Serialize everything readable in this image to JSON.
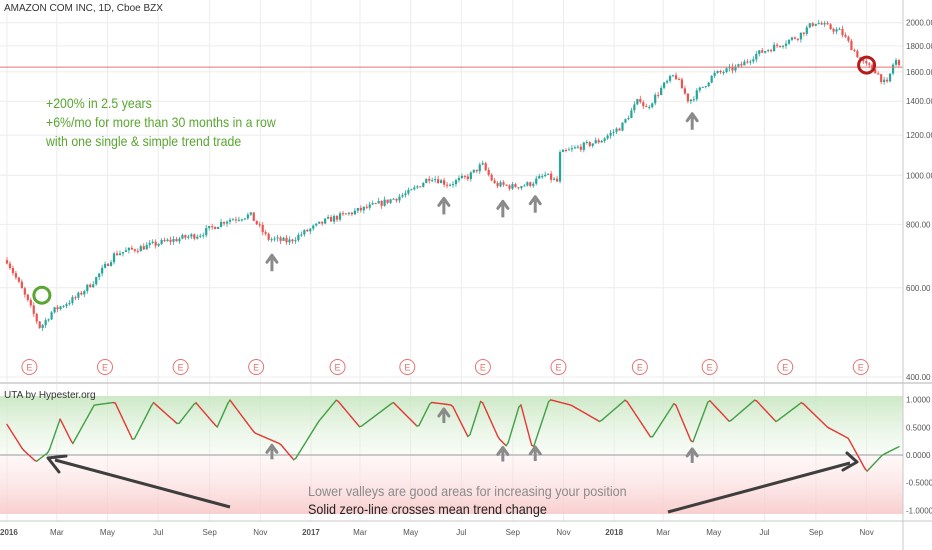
{
  "header": {
    "symbol_title": "AMAZON COM INC, 1D, Cboe BZX",
    "indicator_title": "UTA by Hypester.org"
  },
  "annotations": {
    "line1": "+200% in 2.5 years",
    "line2": "+6%/mo for more than 30 months in a row",
    "line3": "with one single & simple trend trade",
    "note_valleys": "Lower valleys are good areas for increasing your position",
    "note_zero": "Solid zero-line crosses mean trend change",
    "earnings_marker": "E"
  },
  "colors": {
    "up_candle": "#26a69a",
    "down_candle": "#ef5350",
    "annotation_green": "#5aa632",
    "horizontal_line": "#e57373",
    "indicator_up": "#43a047",
    "indicator_down": "#e53935",
    "arrow_gray": "#8a8a8a",
    "big_arrow": "#3e3e3e"
  },
  "chart_data": [
    {
      "type": "candlestick",
      "title": "AMAZON COM INC, 1D, Cboe BZX",
      "ylim": [
        400,
        2100
      ],
      "y_ticks": [
        "400.00",
        "600.00",
        "800.00",
        "1000.00",
        "1200.00",
        "1400.00",
        "1600.00",
        "1800.00",
        "2000.00"
      ],
      "x_ticks": [
        "2016",
        "Mar",
        "May",
        "Jul",
        "Sep",
        "Nov",
        "2017",
        "Mar",
        "May",
        "Jul",
        "Sep",
        "Nov",
        "2018",
        "Mar",
        "May",
        "Jul",
        "Sep",
        "Nov"
      ],
      "horizontal_line": 1635,
      "price_path": [
        [
          "2016-01-01",
          680
        ],
        [
          "2016-01-20",
          590
        ],
        [
          "2016-02-10",
          500
        ],
        [
          "2016-02-25",
          540
        ],
        [
          "2016-03-25",
          575
        ],
        [
          "2016-04-15",
          620
        ],
        [
          "2016-05-10",
          700
        ],
        [
          "2016-06-10",
          720
        ],
        [
          "2016-07-10",
          740
        ],
        [
          "2016-08-20",
          765
        ],
        [
          "2016-09-20",
          815
        ],
        [
          "2016-10-20",
          835
        ],
        [
          "2016-11-10",
          750
        ],
        [
          "2016-12-05",
          740
        ],
        [
          "2016-12-20",
          765
        ],
        [
          "2017-01-20",
          815
        ],
        [
          "2017-02-20",
          845
        ],
        [
          "2017-03-30",
          885
        ],
        [
          "2017-04-30",
          925
        ],
        [
          "2017-05-25",
          995
        ],
        [
          "2017-06-15",
          960
        ],
        [
          "2017-07-10",
          995
        ],
        [
          "2017-07-26",
          1050
        ],
        [
          "2017-08-10",
          960
        ],
        [
          "2017-09-01",
          950
        ],
        [
          "2017-09-20",
          960
        ],
        [
          "2017-10-10",
          1000
        ],
        [
          "2017-10-25",
          970
        ],
        [
          "2017-10-27",
          1100
        ],
        [
          "2017-11-15",
          1130
        ],
        [
          "2017-12-15",
          1170
        ],
        [
          "2018-01-10",
          1250
        ],
        [
          "2018-02-01",
          1420
        ],
        [
          "2018-02-08",
          1350
        ],
        [
          "2018-03-01",
          1500
        ],
        [
          "2018-03-15",
          1580
        ],
        [
          "2018-04-01",
          1400
        ],
        [
          "2018-04-15",
          1480
        ],
        [
          "2018-05-01",
          1580
        ],
        [
          "2018-06-01",
          1640
        ],
        [
          "2018-06-20",
          1730
        ],
        [
          "2018-07-15",
          1800
        ],
        [
          "2018-08-10",
          1880
        ],
        [
          "2018-08-31",
          2010
        ],
        [
          "2018-09-15",
          1960
        ],
        [
          "2018-10-01",
          1920
        ],
        [
          "2018-10-15",
          1780
        ],
        [
          "2018-10-30",
          1650
        ],
        [
          "2018-11-10",
          1620
        ],
        [
          "2018-11-25",
          1500
        ],
        [
          "2018-12-05",
          1700
        ],
        [
          "2018-12-10",
          1640
        ]
      ],
      "earnings_dates": [
        "2016-01-28",
        "2016-04-28",
        "2016-07-28",
        "2016-10-27",
        "2017-02-02",
        "2017-04-27",
        "2017-07-27",
        "2017-10-26",
        "2018-02-01",
        "2018-04-26",
        "2018-07-26",
        "2018-10-25"
      ],
      "arrow_dates": [
        "2016-11-15",
        "2017-06-10",
        "2017-08-20",
        "2017-09-28",
        "2018-04-05"
      ],
      "circles": [
        [
          "2016-02-12",
          580
        ],
        [
          "2018-11-01",
          1650
        ]
      ]
    },
    {
      "type": "line",
      "title": "UTA by Hypester.org",
      "ylim": [
        -1.1,
        1.1
      ],
      "y_ticks": [
        "1.0000",
        "0.5000",
        "0.0000",
        "-0.5000",
        "-1.0000"
      ],
      "x_ticks": [
        "2016",
        "Mar",
        "May",
        "Jul",
        "Sep",
        "Nov",
        "2017",
        "Mar",
        "May",
        "Jul",
        "Sep",
        "Nov",
        "2018",
        "Mar",
        "May",
        "Jul",
        "Sep",
        "Nov"
      ],
      "zero_line": 0,
      "oscillator": [
        [
          "2016-01-01",
          0.55
        ],
        [
          "2016-01-20",
          0.1
        ],
        [
          "2016-02-05",
          -0.12
        ],
        [
          "2016-02-20",
          0.05
        ],
        [
          "2016-03-05",
          0.65
        ],
        [
          "2016-03-20",
          0.2
        ],
        [
          "2016-04-15",
          0.9
        ],
        [
          "2016-05-10",
          0.95
        ],
        [
          "2016-06-01",
          0.25
        ],
        [
          "2016-06-25",
          0.95
        ],
        [
          "2016-07-25",
          0.55
        ],
        [
          "2016-08-15",
          0.95
        ],
        [
          "2016-09-10",
          0.5
        ],
        [
          "2016-09-25",
          1.0
        ],
        [
          "2016-10-25",
          0.4
        ],
        [
          "2016-11-25",
          0.2
        ],
        [
          "2016-12-12",
          -0.1
        ],
        [
          "2017-01-10",
          0.6
        ],
        [
          "2017-02-01",
          1.0
        ],
        [
          "2017-03-01",
          0.5
        ],
        [
          "2017-04-10",
          0.95
        ],
        [
          "2017-05-10",
          0.5
        ],
        [
          "2017-05-25",
          0.95
        ],
        [
          "2017-06-20",
          0.9
        ],
        [
          "2017-07-10",
          0.3
        ],
        [
          "2017-07-25",
          1.0
        ],
        [
          "2017-08-15",
          0.3
        ],
        [
          "2017-08-25",
          0.15
        ],
        [
          "2017-09-10",
          0.95
        ],
        [
          "2017-09-25",
          0.1
        ],
        [
          "2017-10-15",
          1.0
        ],
        [
          "2017-11-10",
          0.9
        ],
        [
          "2017-12-15",
          0.6
        ],
        [
          "2018-01-15",
          1.0
        ],
        [
          "2018-02-15",
          0.3
        ],
        [
          "2018-03-15",
          0.95
        ],
        [
          "2018-04-05",
          0.2
        ],
        [
          "2018-04-25",
          1.0
        ],
        [
          "2018-05-20",
          0.6
        ],
        [
          "2018-06-20",
          1.0
        ],
        [
          "2018-07-15",
          0.6
        ],
        [
          "2018-08-15",
          0.95
        ],
        [
          "2018-09-15",
          0.5
        ],
        [
          "2018-10-10",
          0.3
        ],
        [
          "2018-11-01",
          -0.3
        ],
        [
          "2018-11-20",
          0.0
        ],
        [
          "2018-12-10",
          0.15
        ]
      ],
      "arrow_dates": [
        "2016-11-15",
        "2017-06-10",
        "2017-08-20",
        "2017-09-28",
        "2018-04-05"
      ]
    }
  ]
}
